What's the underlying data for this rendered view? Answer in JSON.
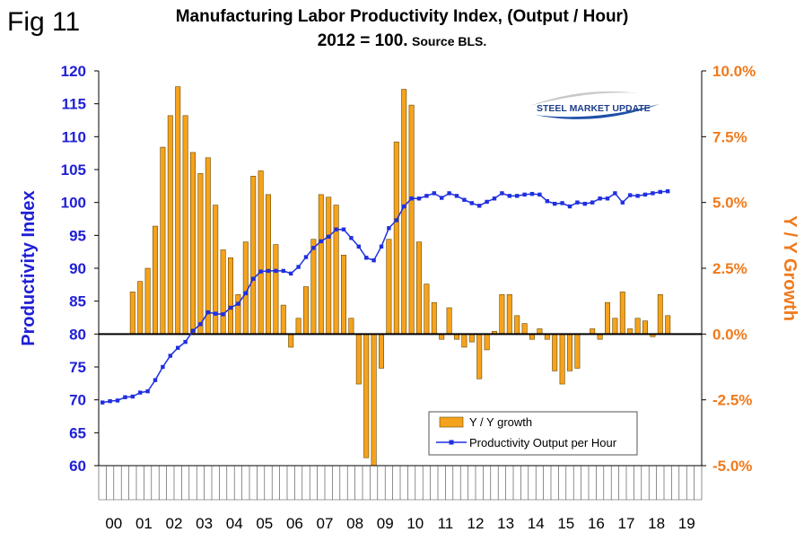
{
  "figure_label": "Fig 11",
  "logo_text": "STEEL MARKET UPDATE",
  "colors": {
    "left_axis": "#1f1fd6",
    "right_axis": "#f07a1c",
    "bar_fill": "#f5a21c",
    "bar_stroke": "#6a4a00",
    "line": "#1f2fe0",
    "grid": "#000000"
  },
  "chart_data": {
    "type": "bar",
    "title": "Manufacturing Labor Productivity Index, (Output / Hour)",
    "subtitle_main": "2012 = 100.",
    "subtitle_source": "Source BLS.",
    "ylabel_left": "Productivity Index",
    "ylabel_right": "Y / Y Growth",
    "ylim_left": [
      60,
      120
    ],
    "ylim_right": [
      -5.0,
      10.0
    ],
    "left_ticks": [
      "60",
      "65",
      "70",
      "75",
      "80",
      "85",
      "90",
      "95",
      "100",
      "105",
      "110",
      "115",
      "120"
    ],
    "right_ticks": [
      "-5.0%",
      "-2.5%",
      "0.0%",
      "2.5%",
      "5.0%",
      "7.5%",
      "10.0%"
    ],
    "years": [
      "00",
      "01",
      "02",
      "03",
      "04",
      "05",
      "06",
      "07",
      "08",
      "09",
      "10",
      "11",
      "12",
      "13",
      "14",
      "15",
      "16",
      "17",
      "18",
      "19"
    ],
    "legend": [
      "Y / Y growth",
      "Productivity Output per Hour"
    ],
    "series": [
      {
        "name": "Y / Y growth",
        "kind": "bar",
        "axis": "right",
        "values": [
          null,
          null,
          null,
          null,
          1.6,
          2.0,
          2.5,
          4.1,
          7.1,
          8.3,
          9.4,
          8.3,
          6.9,
          6.1,
          6.7,
          4.9,
          3.2,
          2.9,
          1.5,
          3.5,
          6.0,
          6.2,
          5.3,
          3.4,
          1.1,
          -0.5,
          0.6,
          1.8,
          3.6,
          5.3,
          5.2,
          4.9,
          3.0,
          0.6,
          -1.9,
          -4.7,
          -5.0,
          -1.3,
          3.6,
          7.3,
          9.3,
          8.7,
          3.5,
          1.9,
          1.2,
          -0.2,
          1.0,
          -0.2,
          -0.5,
          -0.3,
          -1.7,
          -0.6,
          0.1,
          1.5,
          1.5,
          0.7,
          0.4,
          -0.2,
          0.2,
          -0.2,
          -1.4,
          -1.9,
          -1.4,
          -1.3,
          0.0,
          0.2,
          -0.2,
          1.2,
          0.6,
          1.6,
          0.2,
          0.6,
          0.5,
          -0.1,
          1.5,
          0.7
        ]
      },
      {
        "name": "Productivity Output per Hour",
        "kind": "line",
        "axis": "left",
        "values": [
          69.6,
          69.8,
          69.9,
          70.4,
          70.5,
          71.1,
          71.3,
          73.0,
          75.0,
          76.7,
          77.9,
          78.8,
          80.5,
          81.5,
          83.3,
          83.1,
          83.0,
          84.0,
          84.6,
          86.2,
          88.4,
          89.5,
          89.6,
          89.6,
          89.6,
          89.2,
          90.2,
          91.7,
          93.1,
          94.1,
          94.8,
          95.9,
          95.9,
          94.6,
          93.3,
          91.6,
          91.2,
          93.3,
          96.1,
          97.3,
          99.4,
          100.6,
          100.6,
          101.0,
          101.4,
          100.7,
          101.4,
          101.0,
          100.4,
          99.9,
          99.5,
          100.1,
          100.6,
          101.4,
          101.0,
          101.0,
          101.2,
          101.3,
          101.2,
          100.2,
          99.8,
          99.9,
          99.4,
          100.0,
          99.8,
          100.0,
          100.6,
          100.6,
          101.4,
          100.0,
          101.1,
          101.0,
          101.2,
          101.4,
          101.6,
          101.7
        ]
      }
    ]
  }
}
